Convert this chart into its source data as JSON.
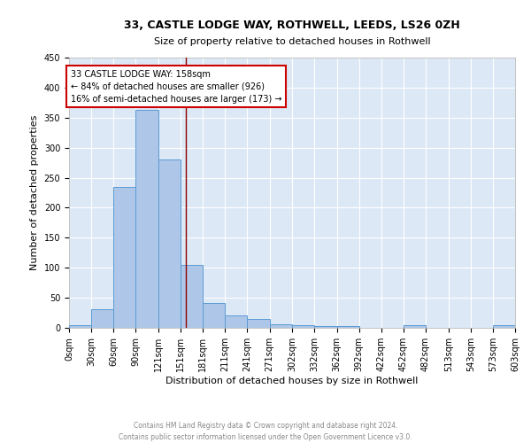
{
  "title1": "33, CASTLE LODGE WAY, ROTHWELL, LEEDS, LS26 0ZH",
  "title2": "Size of property relative to detached houses in Rothwell",
  "xlabel": "Distribution of detached houses by size in Rothwell",
  "ylabel": "Number of detached properties",
  "footer1": "Contains HM Land Registry data © Crown copyright and database right 2024.",
  "footer2": "Contains public sector information licensed under the Open Government Licence v3.0.",
  "bin_edges": [
    0,
    30,
    60,
    90,
    121,
    151,
    181,
    211,
    241,
    271,
    302,
    332,
    362,
    392,
    422,
    452,
    482,
    513,
    543,
    573,
    603
  ],
  "bin_labels": [
    "0sqm",
    "30sqm",
    "60sqm",
    "90sqm",
    "121sqm",
    "151sqm",
    "181sqm",
    "211sqm",
    "241sqm",
    "271sqm",
    "302sqm",
    "332sqm",
    "362sqm",
    "392sqm",
    "422sqm",
    "452sqm",
    "482sqm",
    "513sqm",
    "543sqm",
    "573sqm",
    "603sqm"
  ],
  "counts": [
    4,
    31,
    235,
    363,
    280,
    105,
    41,
    20,
    15,
    6,
    4,
    3,
    3,
    0,
    0,
    4,
    0,
    0,
    0,
    4
  ],
  "bar_color": "#aec6e8",
  "bar_edge_color": "#5b9bd5",
  "vline_x": 158,
  "vline_color": "#8b0000",
  "annotation_line1": "33 CASTLE LODGE WAY: 158sqm",
  "annotation_line2": "← 84% of detached houses are smaller (926)",
  "annotation_line3": "16% of semi-detached houses are larger (173) →",
  "annotation_box_color": "white",
  "annotation_box_edge": "#cc0000",
  "ylim": [
    0,
    450
  ],
  "yticks": [
    0,
    50,
    100,
    150,
    200,
    250,
    300,
    350,
    400,
    450
  ],
  "bg_color": "#dce8f5",
  "grid_color": "white",
  "title1_fontsize": 9,
  "title2_fontsize": 8,
  "ylabel_fontsize": 8,
  "xlabel_fontsize": 8,
  "tick_fontsize": 7,
  "footer_fontsize": 5.5
}
